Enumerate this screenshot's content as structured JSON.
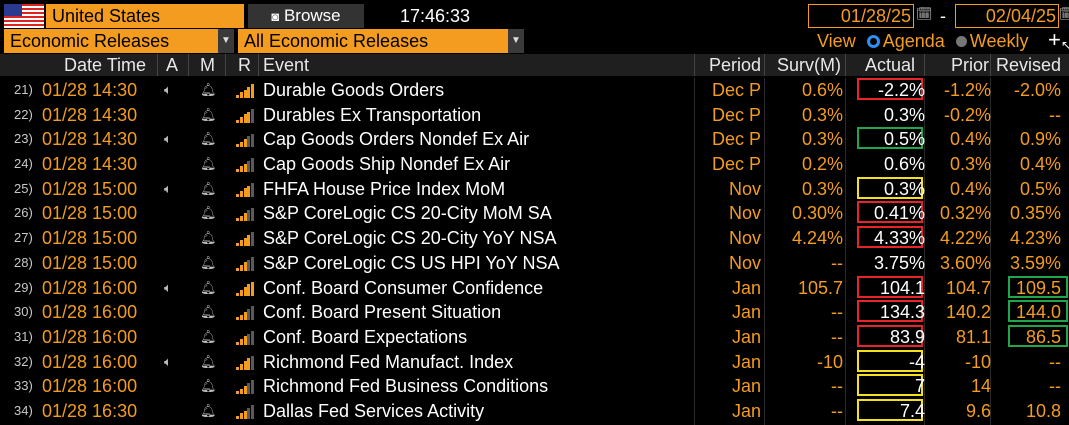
{
  "toolbar": {
    "country": "United States",
    "browse_label": "Browse",
    "time": "17:46:33",
    "date_from": "01/28/25",
    "date_sep": "-",
    "date_to": "02/04/25"
  },
  "filters": {
    "category": "Economic Releases",
    "subcategory": "All Economic Releases",
    "view_label": "View",
    "agenda_label": "Agenda",
    "weekly_label": "Weekly",
    "plus": "+"
  },
  "columns": {
    "datetime": "Date Time",
    "a": "A",
    "m": "M",
    "r": "R",
    "event": "Event",
    "period": "Period",
    "surv": "Surv(M)",
    "actual": "Actual",
    "prior": "Prior",
    "revised": "Revised"
  },
  "colors": {
    "accent": "#f39c1f",
    "highlight_red": "#e8232a",
    "highlight_green": "#1fa64a",
    "highlight_yellow": "#f3e01f"
  },
  "rows": [
    {
      "num": "21)",
      "dt": "01/28 14:30",
      "audio": true,
      "bars": 5,
      "event": "Durable Goods Orders",
      "period": "Dec P",
      "surv": "0.6%",
      "actual": "-2.2%",
      "prior": "-1.2%",
      "revised": "-2.0%",
      "hl_actual": "red",
      "hl_revised": ""
    },
    {
      "num": "22)",
      "dt": "01/28 14:30",
      "audio": false,
      "bars": 4,
      "event": "Durables Ex Transportation",
      "period": "Dec P",
      "surv": "0.3%",
      "actual": "0.3%",
      "prior": "-0.2%",
      "revised": "--",
      "hl_actual": "",
      "hl_revised": ""
    },
    {
      "num": "23)",
      "dt": "01/28 14:30",
      "audio": true,
      "bars": 3,
      "event": "Cap Goods Orders Nondef Ex Air",
      "period": "Dec P",
      "surv": "0.3%",
      "actual": "0.5%",
      "prior": "0.4%",
      "revised": "0.9%",
      "hl_actual": "green",
      "hl_revised": ""
    },
    {
      "num": "24)",
      "dt": "01/28 14:30",
      "audio": false,
      "bars": 3,
      "event": "Cap Goods Ship Nondef Ex Air",
      "period": "Dec P",
      "surv": "0.2%",
      "actual": "0.6%",
      "prior": "0.3%",
      "revised": "0.4%",
      "hl_actual": "",
      "hl_revised": ""
    },
    {
      "num": "25)",
      "dt": "01/28 15:00",
      "audio": true,
      "bars": 4,
      "event": "FHFA House Price Index MoM",
      "period": "Nov",
      "surv": "0.3%",
      "actual": "0.3%",
      "prior": "0.4%",
      "revised": "0.5%",
      "hl_actual": "yellow",
      "hl_revised": ""
    },
    {
      "num": "26)",
      "dt": "01/28 15:00",
      "audio": false,
      "bars": 3,
      "event": "S&P CoreLogic CS 20-City MoM SA",
      "period": "Nov",
      "surv": "0.30%",
      "actual": "0.41%",
      "prior": "0.32%",
      "revised": "0.35%",
      "hl_actual": "red",
      "hl_revised": ""
    },
    {
      "num": "27)",
      "dt": "01/28 15:00",
      "audio": false,
      "bars": 4,
      "event": "S&P CoreLogic CS 20-City YoY NSA",
      "period": "Nov",
      "surv": "4.24%",
      "actual": "4.33%",
      "prior": "4.22%",
      "revised": "4.23%",
      "hl_actual": "red",
      "hl_revised": ""
    },
    {
      "num": "28)",
      "dt": "01/28 15:00",
      "audio": false,
      "bars": 3,
      "event": "S&P CoreLogic CS US HPI YoY NSA",
      "period": "Nov",
      "surv": "--",
      "actual": "3.75%",
      "prior": "3.60%",
      "revised": "3.59%",
      "hl_actual": "",
      "hl_revised": ""
    },
    {
      "num": "29)",
      "dt": "01/28 16:00",
      "audio": true,
      "bars": 5,
      "event": "Conf. Board Consumer Confidence",
      "period": "Jan",
      "surv": "105.7",
      "actual": "104.1",
      "prior": "104.7",
      "revised": "109.5",
      "hl_actual": "red",
      "hl_revised": "green"
    },
    {
      "num": "30)",
      "dt": "01/28 16:00",
      "audio": false,
      "bars": 3,
      "event": "Conf. Board Present Situation",
      "period": "Jan",
      "surv": "--",
      "actual": "134.3",
      "prior": "140.2",
      "revised": "144.0",
      "hl_actual": "red",
      "hl_revised": "green"
    },
    {
      "num": "31)",
      "dt": "01/28 16:00",
      "audio": false,
      "bars": 3,
      "event": "Conf. Board Expectations",
      "period": "Jan",
      "surv": "--",
      "actual": "83.9",
      "prior": "81.1",
      "revised": "86.5",
      "hl_actual": "red",
      "hl_revised": "green"
    },
    {
      "num": "32)",
      "dt": "01/28 16:00",
      "audio": true,
      "bars": 4,
      "event": "Richmond Fed Manufact. Index",
      "period": "Jan",
      "surv": "-10",
      "actual": "-4",
      "prior": "-10",
      "revised": "--",
      "hl_actual": "yellow",
      "hl_revised": ""
    },
    {
      "num": "33)",
      "dt": "01/28 16:00",
      "audio": false,
      "bars": 3,
      "event": "Richmond Fed Business Conditions",
      "period": "Jan",
      "surv": "--",
      "actual": "7",
      "prior": "14",
      "revised": "--",
      "hl_actual": "yellow",
      "hl_revised": ""
    },
    {
      "num": "34)",
      "dt": "01/28 16:30",
      "audio": false,
      "bars": 3,
      "event": "Dallas Fed Services Activity",
      "period": "Jan",
      "surv": "--",
      "actual": "7.4",
      "prior": "9.6",
      "revised": "10.8",
      "hl_actual": "yellow",
      "hl_revised": ""
    }
  ]
}
